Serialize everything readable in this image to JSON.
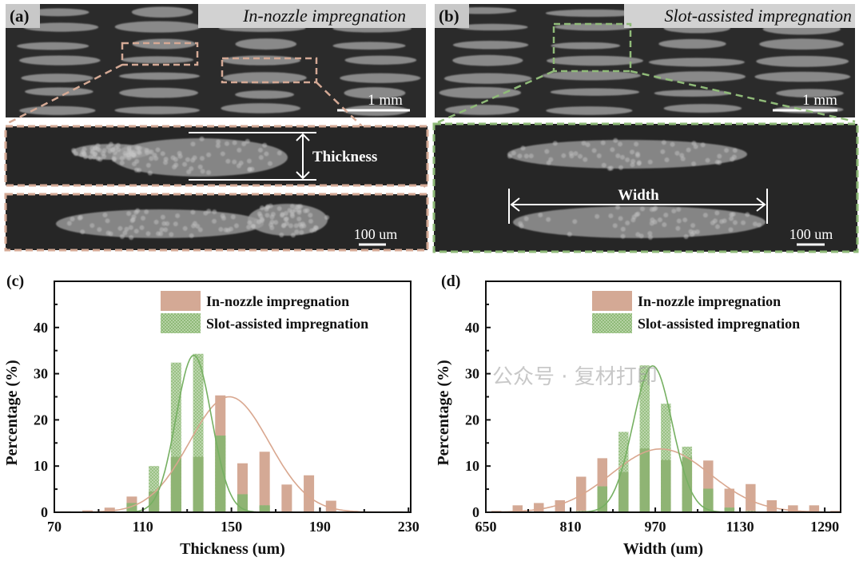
{
  "panels": {
    "a": {
      "label": "(a)",
      "title": "In-nozzle impregnation",
      "scale_top": "1 mm",
      "scale_inset": "100 um",
      "annotation": "Thickness",
      "frame_color": "#d4a995"
    },
    "b": {
      "label": "(b)",
      "title": "Slot-assisted impregnation",
      "scale_top": "1 mm",
      "scale_inset": "100 um",
      "annotation": "Width",
      "frame_color": "#8fba78"
    },
    "c": {
      "label": "(c)"
    },
    "d": {
      "label": "(d)"
    }
  },
  "watermark": "公众号 · 复材打印",
  "chart_data": [
    {
      "type": "bar",
      "panel": "c",
      "xlabel": "Thickness (um)",
      "ylabel": "Percentage (%)",
      "xlim": [
        70,
        231
      ],
      "ylim": [
        0,
        50
      ],
      "xticks": [
        70,
        110,
        150,
        190,
        230
      ],
      "yticks": [
        0,
        10,
        20,
        30,
        40
      ],
      "grid": false,
      "legend": "top-right",
      "bin_centers": [
        75,
        85,
        95,
        105,
        115,
        125,
        135,
        145,
        155,
        165,
        175,
        185,
        195,
        205,
        215,
        225
      ],
      "bin_width": 10,
      "series": [
        {
          "name": "In-nozzle impregnation",
          "color": "#d4a995",
          "values": [
            0.2,
            0.4,
            1.0,
            3.4,
            4.5,
            12.0,
            12.0,
            25.3,
            10.6,
            13.1,
            6.0,
            8.0,
            2.5,
            0.3,
            0.2,
            0.2
          ],
          "fit": {
            "mean": 149,
            "sd": 18,
            "peak": 25
          }
        },
        {
          "name": "Slot-assisted impregnation",
          "color": "#8fba78",
          "values": [
            0,
            0,
            0,
            2.0,
            10.0,
            32.4,
            34.3,
            16.6,
            3.9,
            1.5,
            0,
            0,
            0,
            0,
            0,
            0
          ],
          "fit": {
            "mean": 133,
            "sd": 8,
            "peak": 34
          }
        }
      ]
    },
    {
      "type": "bar",
      "panel": "d",
      "xlabel": "Width (um)",
      "ylabel": "Percentage (%)",
      "xlim": [
        650,
        1320
      ],
      "ylim": [
        0,
        50
      ],
      "xticks": [
        650,
        810,
        970,
        1130,
        1290
      ],
      "yticks": [
        0,
        10,
        20,
        30,
        40
      ],
      "grid": false,
      "legend": "top-right",
      "bin_centers": [
        670,
        710,
        750,
        790,
        830,
        870,
        910,
        950,
        990,
        1030,
        1070,
        1110,
        1150,
        1190,
        1230,
        1270,
        1310
      ],
      "bin_width": 40,
      "series": [
        {
          "name": "In-nozzle impregnation",
          "color": "#d4a995",
          "values": [
            0.3,
            1.5,
            2.0,
            2.6,
            7.7,
            11.7,
            8.7,
            13.8,
            11.3,
            11.9,
            11.2,
            5.1,
            6.1,
            2.6,
            1.5,
            1.5,
            0.3
          ],
          "fit": {
            "mean": 980,
            "sd": 93,
            "peak": 13.7
          }
        },
        {
          "name": "Slot-assisted impregnation",
          "color": "#8fba78",
          "values": [
            0,
            0,
            0,
            0,
            0.3,
            5.6,
            17.4,
            31.8,
            23.5,
            14.2,
            5.1,
            1.0,
            0.3,
            0,
            0,
            0,
            0
          ],
          "fit": {
            "mean": 965,
            "sd": 37,
            "peak": 31.7
          }
        }
      ]
    }
  ]
}
